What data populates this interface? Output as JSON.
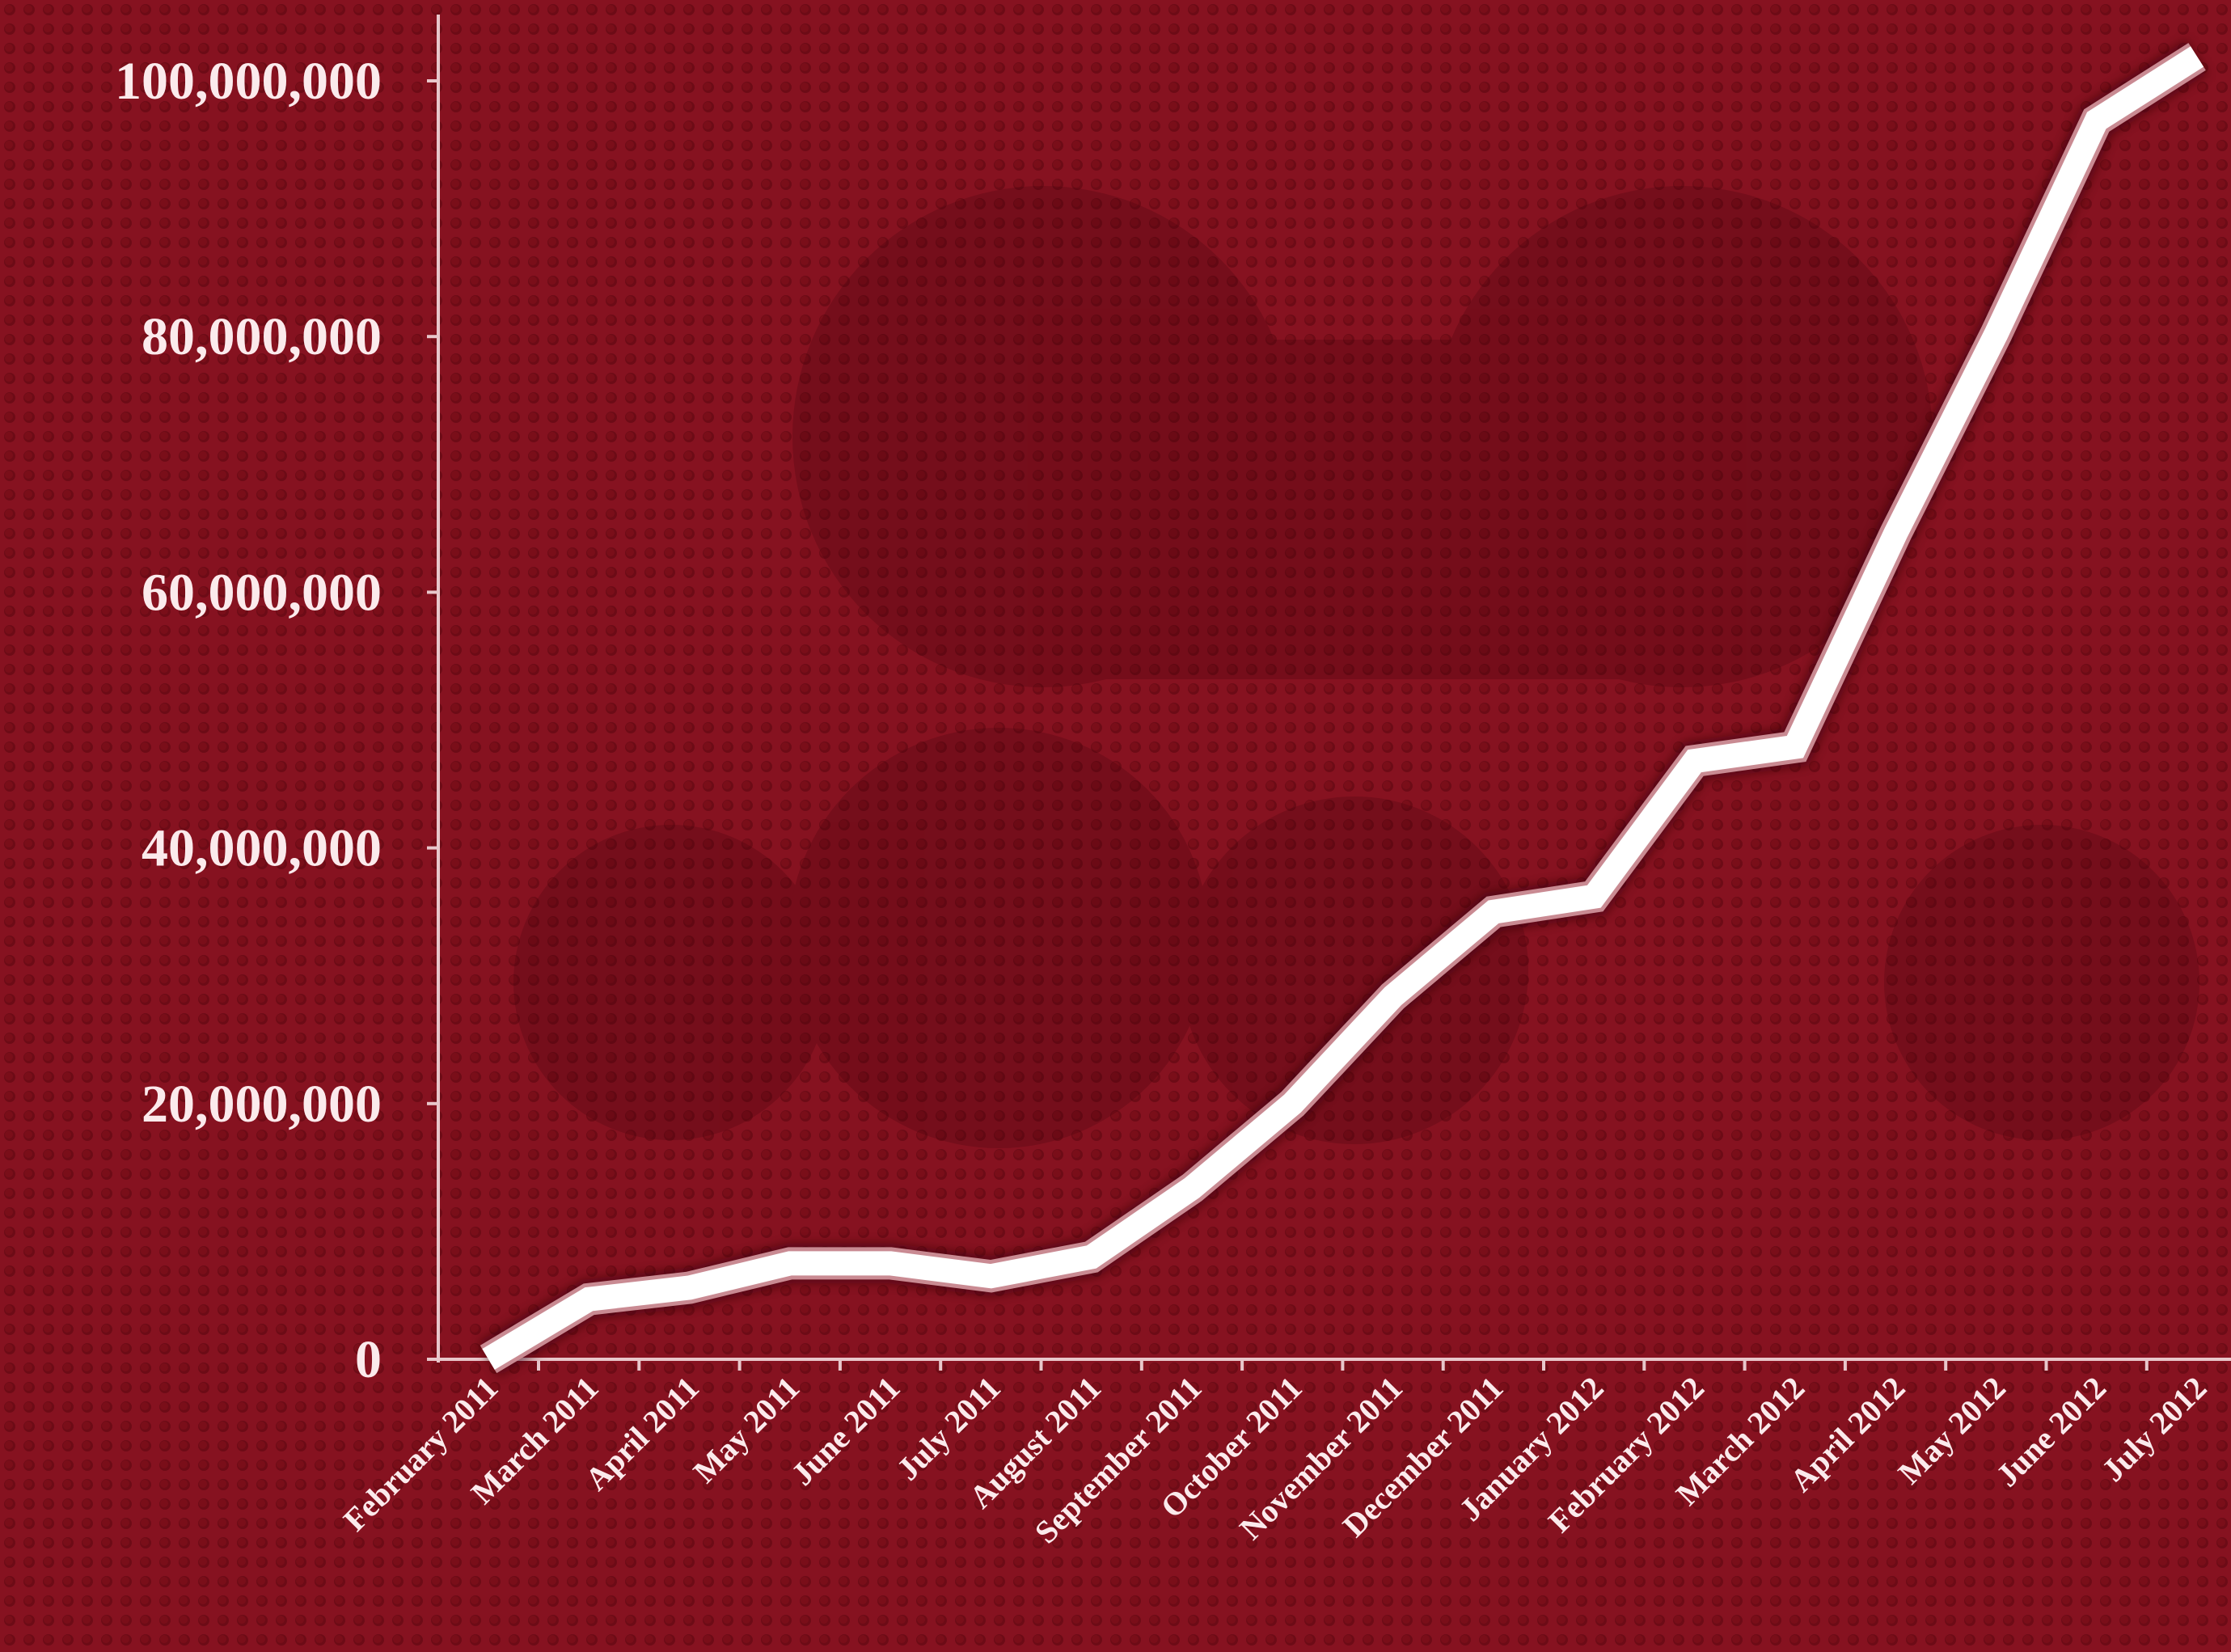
{
  "chart_data": {
    "type": "line",
    "categories": [
      "February 2011",
      "March 2011",
      "April 2011",
      "May 2011",
      "June 2011",
      "July 2011",
      "August 2011",
      "September 2011",
      "October 2011",
      "November 2011",
      "December 2011",
      "January 2012",
      "February 2012",
      "March 2012",
      "April 2012",
      "May 2012",
      "June 2012",
      "July 2012"
    ],
    "values": [
      0,
      4700000,
      5600000,
      7500000,
      7500000,
      6500000,
      8000000,
      13400000,
      20000000,
      28400000,
      35000000,
      36200000,
      46800000,
      47900000,
      64600000,
      80200000,
      96900000,
      101900000
    ],
    "color": "#ffffff",
    "ylim": [
      0,
      100000000
    ],
    "yticks": [
      0,
      {
        "value": 20000000,
        "label": "20,000,000"
      },
      {
        "value": 40000000,
        "label": "40,000,000"
      },
      {
        "value": 60000000,
        "label": "60,000,000"
      },
      {
        "value": 80000000,
        "label": "80,000,000"
      },
      {
        "value": 100000000,
        "label": "100,000,000"
      }
    ],
    "grid": false
  }
}
